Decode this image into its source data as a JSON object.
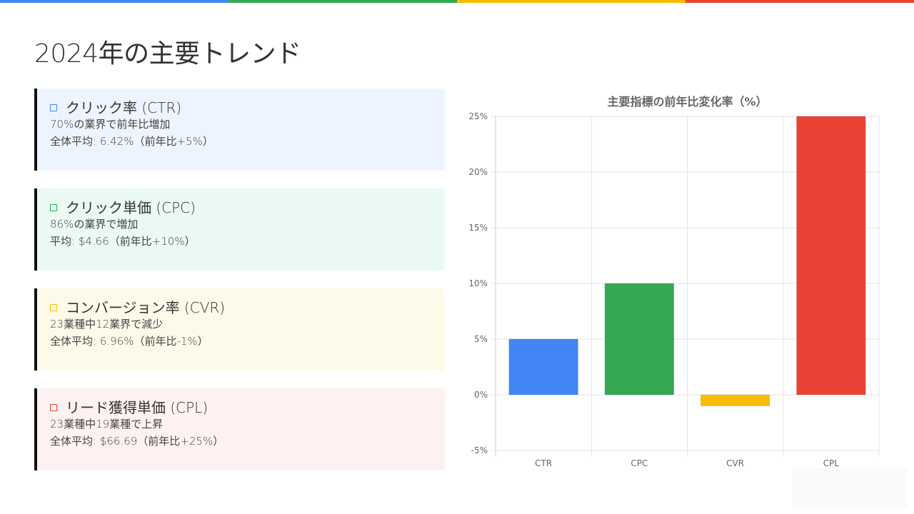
{
  "page": {
    "title": "2024年の主要トレンド",
    "stripe_colors": [
      "#4285F4",
      "#34A853",
      "#FBBC05",
      "#EA4335"
    ]
  },
  "cards": [
    {
      "title": "クリック率 (CTR)",
      "line1": "70%の業界で前年比増加",
      "line2": "全体平均: 6.42%（前年比+5%）",
      "bg": "#EEF4FF",
      "accent": "#4285F4",
      "icon": "square-outline-icon"
    },
    {
      "title": "クリック単価 (CPC)",
      "line1": "86%の業界で増加",
      "line2": "平均: $4.66（前年比+10%）",
      "bg": "#EAFAF2",
      "accent": "#34A853",
      "icon": "square-outline-icon"
    },
    {
      "title": "コンバージョン率 (CVR)",
      "line1": "23業種中12業界で減少",
      "line2": "全体平均: 6.96%（前年比-1%）",
      "bg": "#FEFAE9",
      "accent": "#FBBC05",
      "icon": "square-outline-icon"
    },
    {
      "title": "リード獲得単価 (CPL)",
      "line1": "23業種中19業種で上昇",
      "line2": "全体平均: $66.69（前年比+25%）",
      "bg": "#FEF1F1",
      "accent": "#EA4335",
      "icon": "square-outline-icon"
    }
  ],
  "chart_data": {
    "type": "bar",
    "title": "主要指標の前年比変化率（%）",
    "categories": [
      "CTR",
      "CPC",
      "CVR",
      "CPL"
    ],
    "values": [
      5,
      10,
      -1,
      25
    ],
    "colors": [
      "#4285F4",
      "#34A853",
      "#FBBC05",
      "#EA4335"
    ],
    "ylim": [
      -5,
      25
    ],
    "ytick_values": [
      25,
      20,
      15,
      10,
      5,
      0,
      -5
    ],
    "yticks": [
      "25%",
      "20%",
      "15%",
      "10%",
      "5%",
      "0%",
      "-5%"
    ],
    "xlabel": "",
    "ylabel": "",
    "grid": true,
    "legend": "none"
  }
}
